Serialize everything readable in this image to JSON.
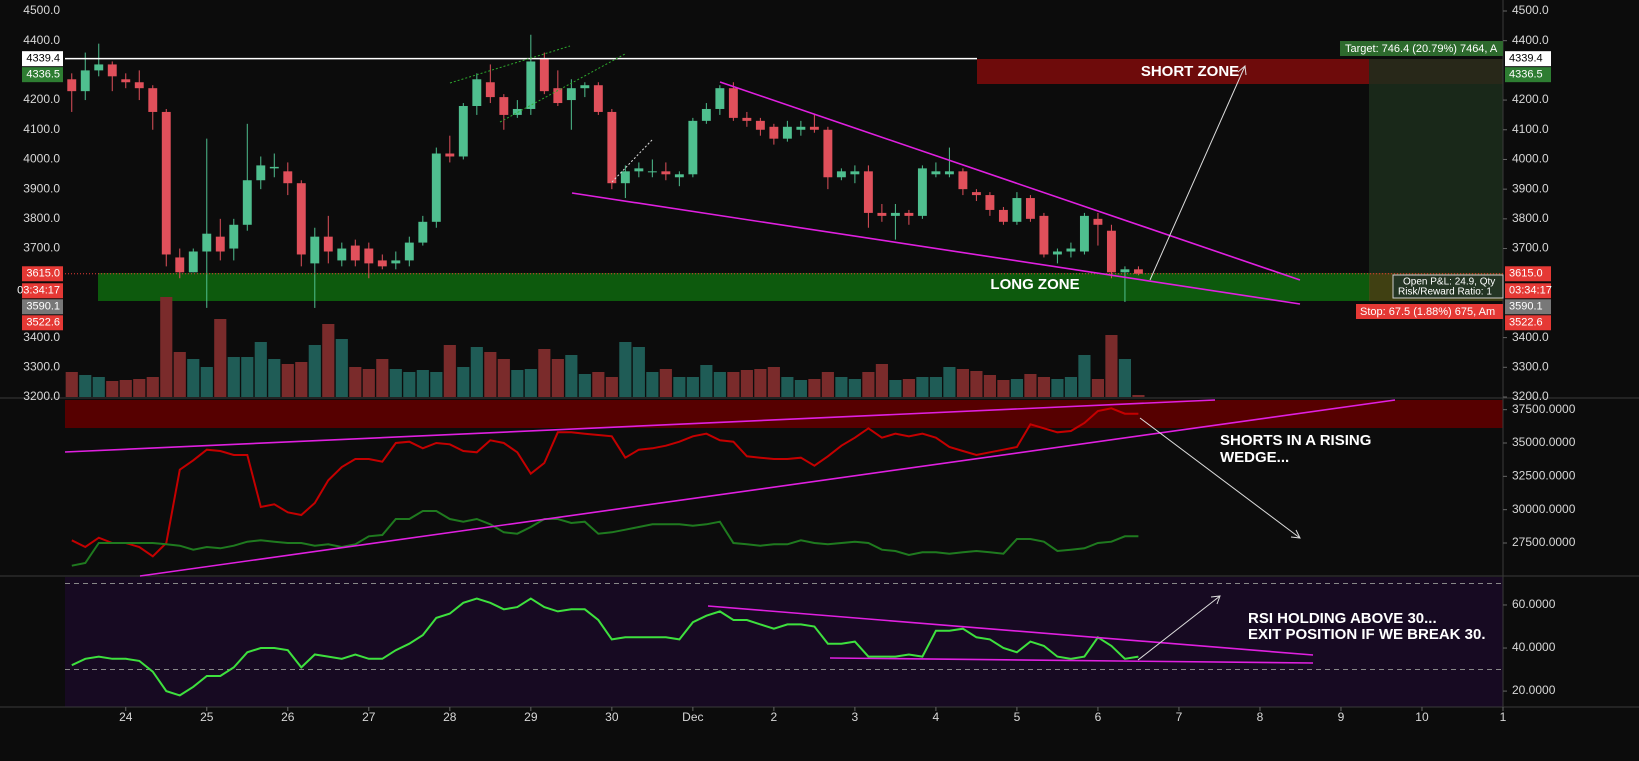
{
  "chart_data": [
    {
      "type": "candlestick",
      "x": [
        0,
        1,
        2,
        3,
        4,
        5,
        6,
        7,
        8,
        9,
        10,
        11,
        12,
        13,
        14,
        15,
        16,
        17,
        18,
        19,
        20,
        21,
        22,
        23,
        24,
        25,
        26,
        27,
        28,
        29,
        30,
        31,
        32,
        33,
        34,
        35,
        36,
        37,
        38,
        39,
        40,
        41,
        42,
        43,
        44,
        45,
        46,
        47,
        48,
        49,
        50,
        51,
        52,
        53,
        54,
        55,
        56,
        57,
        58,
        59,
        60,
        61,
        62,
        63,
        64,
        65,
        66,
        67,
        68,
        69,
        70,
        71,
        72,
        73,
        74,
        75,
        76,
        77,
        78,
        79
      ],
      "open": [
        4270,
        4230,
        4300,
        4320,
        4270,
        4260,
        4240,
        4160,
        3670,
        3620,
        3690,
        3740,
        3700,
        3780,
        3930,
        3970,
        3960,
        3920,
        3650,
        3740,
        3660,
        3710,
        3700,
        3660,
        3650,
        3660,
        3720,
        3790,
        4020,
        4010,
        4180,
        4260,
        4210,
        4150,
        4170,
        4340,
        4240,
        4200,
        4240,
        4250,
        4160,
        3920,
        3960,
        3960,
        3960,
        3940,
        3950,
        4130,
        4170,
        4240,
        4140,
        4130,
        4110,
        4070,
        4100,
        4110,
        4100,
        3940,
        3950,
        3960,
        3820,
        3810,
        3820,
        3810,
        3950,
        3950,
        3960,
        3890,
        3880,
        3830,
        3790,
        3870,
        3810,
        3680,
        3690,
        3690,
        3800,
        3760,
        3620,
        3630
      ],
      "high": [
        4290,
        4360,
        4390,
        4330,
        4290,
        4300,
        4250,
        4170,
        3700,
        3700,
        4070,
        3800,
        3800,
        4120,
        4010,
        4020,
        3990,
        3930,
        3770,
        3810,
        3720,
        3730,
        3720,
        3680,
        3690,
        3740,
        3810,
        4040,
        4080,
        4190,
        4290,
        4320,
        4220,
        4200,
        4420,
        4360,
        4300,
        4270,
        4260,
        4260,
        4170,
        3980,
        3990,
        4000,
        3990,
        3960,
        4140,
        4190,
        4250,
        4260,
        4160,
        4140,
        4120,
        4130,
        4130,
        4150,
        4110,
        3970,
        3980,
        3980,
        3850,
        3850,
        3830,
        3980,
        3990,
        4040,
        3970,
        3900,
        3890,
        3840,
        3890,
        3880,
        3820,
        3700,
        3720,
        3820,
        3820,
        3780,
        3640,
        3640
      ],
      "low": [
        4160,
        4200,
        4280,
        4230,
        4240,
        4200,
        4100,
        3640,
        3600,
        3620,
        3500,
        3660,
        3660,
        3760,
        3900,
        3940,
        3880,
        3640,
        3500,
        3650,
        3640,
        3640,
        3600,
        3630,
        3630,
        3640,
        3710,
        3770,
        3990,
        4000,
        4150,
        4190,
        4100,
        4140,
        4150,
        4220,
        4180,
        4100,
        4210,
        4150,
        3900,
        3870,
        3940,
        3940,
        3930,
        3910,
        3940,
        4120,
        4150,
        4130,
        4110,
        4080,
        4050,
        4060,
        4080,
        4090,
        3900,
        3930,
        3920,
        3770,
        3790,
        3730,
        3780,
        3800,
        3940,
        3940,
        3880,
        3860,
        3810,
        3780,
        3780,
        3790,
        3670,
        3650,
        3670,
        3680,
        3710,
        3600,
        3520,
        3610
      ],
      "close": [
        4230,
        4300,
        4320,
        4280,
        4260,
        4240,
        4160,
        3680,
        3620,
        3690,
        3750,
        3690,
        3780,
        3930,
        3980,
        3975,
        3920,
        3680,
        3740,
        3690,
        3700,
        3660,
        3650,
        3640,
        3660,
        3720,
        3790,
        4020,
        4010,
        4180,
        4270,
        4210,
        4150,
        4170,
        4330,
        4230,
        4190,
        4240,
        4250,
        4160,
        3920,
        3960,
        3970,
        3960,
        3950,
        3950,
        4130,
        4170,
        4240,
        4140,
        4130,
        4100,
        4070,
        4110,
        4110,
        4100,
        3940,
        3960,
        3960,
        3820,
        3810,
        3820,
        3810,
        3970,
        3960,
        3960,
        3900,
        3880,
        3830,
        3790,
        3870,
        3800,
        3680,
        3690,
        3700,
        3810,
        3780,
        3620,
        3630,
        3615
      ],
      "volume": [
        25,
        22,
        20,
        16,
        17,
        18,
        20,
        100,
        45,
        38,
        30,
        78,
        40,
        40,
        55,
        38,
        33,
        35,
        52,
        73,
        58,
        30,
        28,
        38,
        28,
        25,
        27,
        25,
        52,
        30,
        50,
        45,
        38,
        27,
        28,
        48,
        38,
        42,
        23,
        25,
        20,
        55,
        50,
        25,
        28,
        20,
        20,
        32,
        25,
        25,
        27,
        28,
        30,
        20,
        17,
        18,
        25,
        20,
        18,
        25,
        33,
        17,
        18,
        20,
        20,
        30,
        28,
        26,
        22,
        17,
        18,
        23,
        20,
        18,
        20,
        42,
        18,
        62,
        38,
        2
      ],
      "up_color": "#4fbf8f",
      "down_color": "#e0505b",
      "volume_up_color": "#1f5c56",
      "volume_down_color": "#7a2b2b",
      "xlim": [
        -0.5,
        106
      ],
      "ylim": [
        3200,
        4537
      ],
      "yticks": [
        {
          "value": 3200,
          "label": "3200.0"
        },
        {
          "value": 3300,
          "label": "3300.0"
        },
        {
          "value": 3400,
          "label": "3400.0"
        },
        {
          "value": 3700,
          "label": "3700.0"
        },
        {
          "value": 3800,
          "label": "3800.0"
        },
        {
          "value": 3900,
          "label": "3900.0"
        },
        {
          "value": 4000,
          "label": "4000.0"
        },
        {
          "value": 4100,
          "label": "4100.0"
        },
        {
          "value": 4200,
          "label": "4200.0"
        },
        {
          "value": 4400,
          "label": "4400.0"
        },
        {
          "value": 4500,
          "label": "4500.0"
        }
      ],
      "axis_sides": [
        "left",
        "right"
      ],
      "price_markers": [
        {
          "value": 4339.4,
          "label": "4339.4",
          "color": "#ffffff",
          "text_color": "#000000",
          "line": "solid"
        },
        {
          "value": 4336.5,
          "label": "4336.5",
          "color": "#2e7d32",
          "text_color": "#ffffff"
        },
        {
          "value": 3615.0,
          "label": "3615.0",
          "color": "#e53935",
          "text_color": "#ffffff",
          "line": "dotted"
        },
        {
          "label": "03:34:17",
          "color": "#e53935",
          "text_color": "#ffffff"
        },
        {
          "value": 3590.1,
          "label": "3590.1",
          "color": "#787878",
          "text_color": "#ffffff"
        },
        {
          "value": 3522.6,
          "label": "3522.6",
          "color": "#e53935",
          "text_color": "#ffffff"
        }
      ],
      "position": {
        "target": "Target: 746.4 (20.79%) 7464, A",
        "pnl": "Open P&L: 24.9, Qty",
        "rr": "Risk/Reward Ratio: 1",
        "stop": "Stop: 67.5 (1.88%) 675, Am"
      },
      "annotations": [
        "SHORT ZONE",
        "LONG ZONE"
      ]
    },
    {
      "type": "line",
      "x": [
        0,
        1,
        2,
        3,
        4,
        5,
        6,
        7,
        8,
        9,
        10,
        11,
        12,
        13,
        14,
        15,
        16,
        17,
        18,
        19,
        20,
        21,
        22,
        23,
        24,
        25,
        26,
        27,
        28,
        29,
        30,
        31,
        32,
        33,
        34,
        35,
        36,
        37,
        38,
        39,
        40,
        41,
        42,
        43,
        44,
        45,
        46,
        47,
        48,
        49,
        50,
        51,
        52,
        53,
        54,
        55,
        56,
        57,
        58,
        59,
        60,
        61,
        62,
        63,
        64,
        65,
        66,
        67,
        68,
        69,
        70,
        71,
        72,
        73,
        74,
        75,
        76,
        77,
        78,
        79
      ],
      "series": [
        {
          "color": "#c40000",
          "values": [
            27700,
            27200,
            27900,
            27500,
            27500,
            27200,
            26500,
            27500,
            33000,
            33700,
            34500,
            34400,
            34100,
            34100,
            30200,
            30400,
            29800,
            29600,
            30500,
            32200,
            33200,
            33800,
            33800,
            33600,
            35000,
            35100,
            34600,
            35000,
            34900,
            34400,
            34300,
            35200,
            35000,
            34300,
            32700,
            33500,
            35800,
            35800,
            35700,
            35600,
            35500,
            33900,
            34500,
            34600,
            34800,
            35100,
            35500,
            35700,
            35200,
            35100,
            34000,
            33900,
            33800,
            33800,
            33900,
            33300,
            34000,
            34800,
            35400,
            36100,
            35400,
            35700,
            35500,
            35700,
            35400,
            34700,
            34400,
            34100,
            34300,
            34500,
            34700,
            36400,
            36100,
            35800,
            35900,
            36500,
            37400,
            37600,
            37200,
            37200
          ]
        },
        {
          "color": "#1f7a1f",
          "values": [
            25800,
            26000,
            27500,
            27500,
            27500,
            27500,
            27500,
            27400,
            27300,
            27000,
            27200,
            27100,
            27300,
            27600,
            27700,
            27600,
            27500,
            27500,
            27300,
            27400,
            27200,
            27400,
            28000,
            28100,
            29300,
            29300,
            29900,
            29900,
            29300,
            29100,
            29300,
            28900,
            28300,
            28200,
            28700,
            29300,
            29300,
            29000,
            29100,
            28200,
            28300,
            28500,
            28700,
            28900,
            28900,
            28900,
            28800,
            28900,
            29100,
            27500,
            27400,
            27300,
            27400,
            27400,
            27700,
            27500,
            27400,
            27500,
            27600,
            27500,
            27000,
            26900,
            26600,
            26800,
            26800,
            26700,
            26800,
            26900,
            26800,
            26700,
            27800,
            27800,
            27600,
            26900,
            27000,
            27100,
            27500,
            27600,
            28000,
            28000
          ]
        }
      ],
      "xlim": [
        -0.5,
        106
      ],
      "ylim": [
        25100,
        38300
      ],
      "yticks": [
        {
          "value": 27500,
          "label": "27500.0000"
        },
        {
          "value": 30000,
          "label": "30000.0000"
        },
        {
          "value": 32500,
          "label": "32500.0000"
        },
        {
          "value": 35000,
          "label": "35000.0000"
        },
        {
          "value": 37500,
          "label": "37500.0000"
        }
      ],
      "axis_sides": [
        "right"
      ],
      "annotations": [
        "SHORTS IN A RISING",
        "WEDGE..."
      ]
    },
    {
      "type": "line",
      "x": [
        0,
        1,
        2,
        3,
        4,
        5,
        6,
        7,
        8,
        9,
        10,
        11,
        12,
        13,
        14,
        15,
        16,
        17,
        18,
        19,
        20,
        21,
        22,
        23,
        24,
        25,
        26,
        27,
        28,
        29,
        30,
        31,
        32,
        33,
        34,
        35,
        36,
        37,
        38,
        39,
        40,
        41,
        42,
        43,
        44,
        45,
        46,
        47,
        48,
        49,
        50,
        51,
        52,
        53,
        54,
        55,
        56,
        57,
        58,
        59,
        60,
        61,
        62,
        63,
        64,
        65,
        66,
        67,
        68,
        69,
        70,
        71,
        72,
        73,
        74,
        75,
        76,
        77,
        78,
        79
      ],
      "series": [
        {
          "color": "#3ee03e",
          "values": [
            32,
            35,
            36,
            35,
            35,
            34,
            29,
            20,
            18,
            22,
            27,
            27,
            31,
            38,
            40,
            40,
            39,
            31,
            37,
            36,
            35,
            37,
            35,
            35,
            39,
            42,
            46,
            54,
            56,
            61,
            63,
            61,
            58,
            59,
            63,
            59,
            57,
            58,
            58,
            53,
            44,
            45,
            45,
            45,
            45,
            44,
            52,
            55,
            57,
            53,
            53,
            51,
            49,
            51,
            51,
            50,
            42,
            42,
            43,
            36,
            36,
            36,
            37,
            36,
            48,
            48,
            49,
            45,
            44,
            40,
            38,
            43,
            41,
            36,
            35,
            36,
            45,
            41,
            35,
            36
          ]
        }
      ],
      "xlim": [
        -0.5,
        106
      ],
      "ylim": [
        12.6,
        73
      ],
      "yticks": [
        {
          "value": 20,
          "label": "20.0000"
        },
        {
          "value": 40,
          "label": "40.0000"
        },
        {
          "value": 60,
          "label": "60.0000"
        }
      ],
      "levels": [
        30,
        70
      ],
      "axis_sides": [
        "right"
      ],
      "xticks": [
        {
          "value": 4,
          "label": "24"
        },
        {
          "value": 10,
          "label": "25"
        },
        {
          "value": 16,
          "label": "26"
        },
        {
          "value": 22,
          "label": "27"
        },
        {
          "value": 28,
          "label": "28"
        },
        {
          "value": 34,
          "label": "29"
        },
        {
          "value": 40,
          "label": "30"
        },
        {
          "value": 46,
          "label": "Dec"
        },
        {
          "value": 52,
          "label": "2"
        },
        {
          "value": 58,
          "label": "3"
        },
        {
          "value": 64,
          "label": "4"
        },
        {
          "value": 70,
          "label": "5"
        },
        {
          "value": 76,
          "label": "6"
        },
        {
          "value": 82,
          "label": "7"
        },
        {
          "value": 88,
          "label": "8"
        },
        {
          "value": 94,
          "label": "9"
        },
        {
          "value": 100,
          "label": "10"
        },
        {
          "value": 106,
          "label": "1"
        }
      ],
      "annotations": [
        "RSI HOLDING ABOVE 30...",
        "EXIT POSITION IF WE BREAK 30."
      ]
    }
  ]
}
